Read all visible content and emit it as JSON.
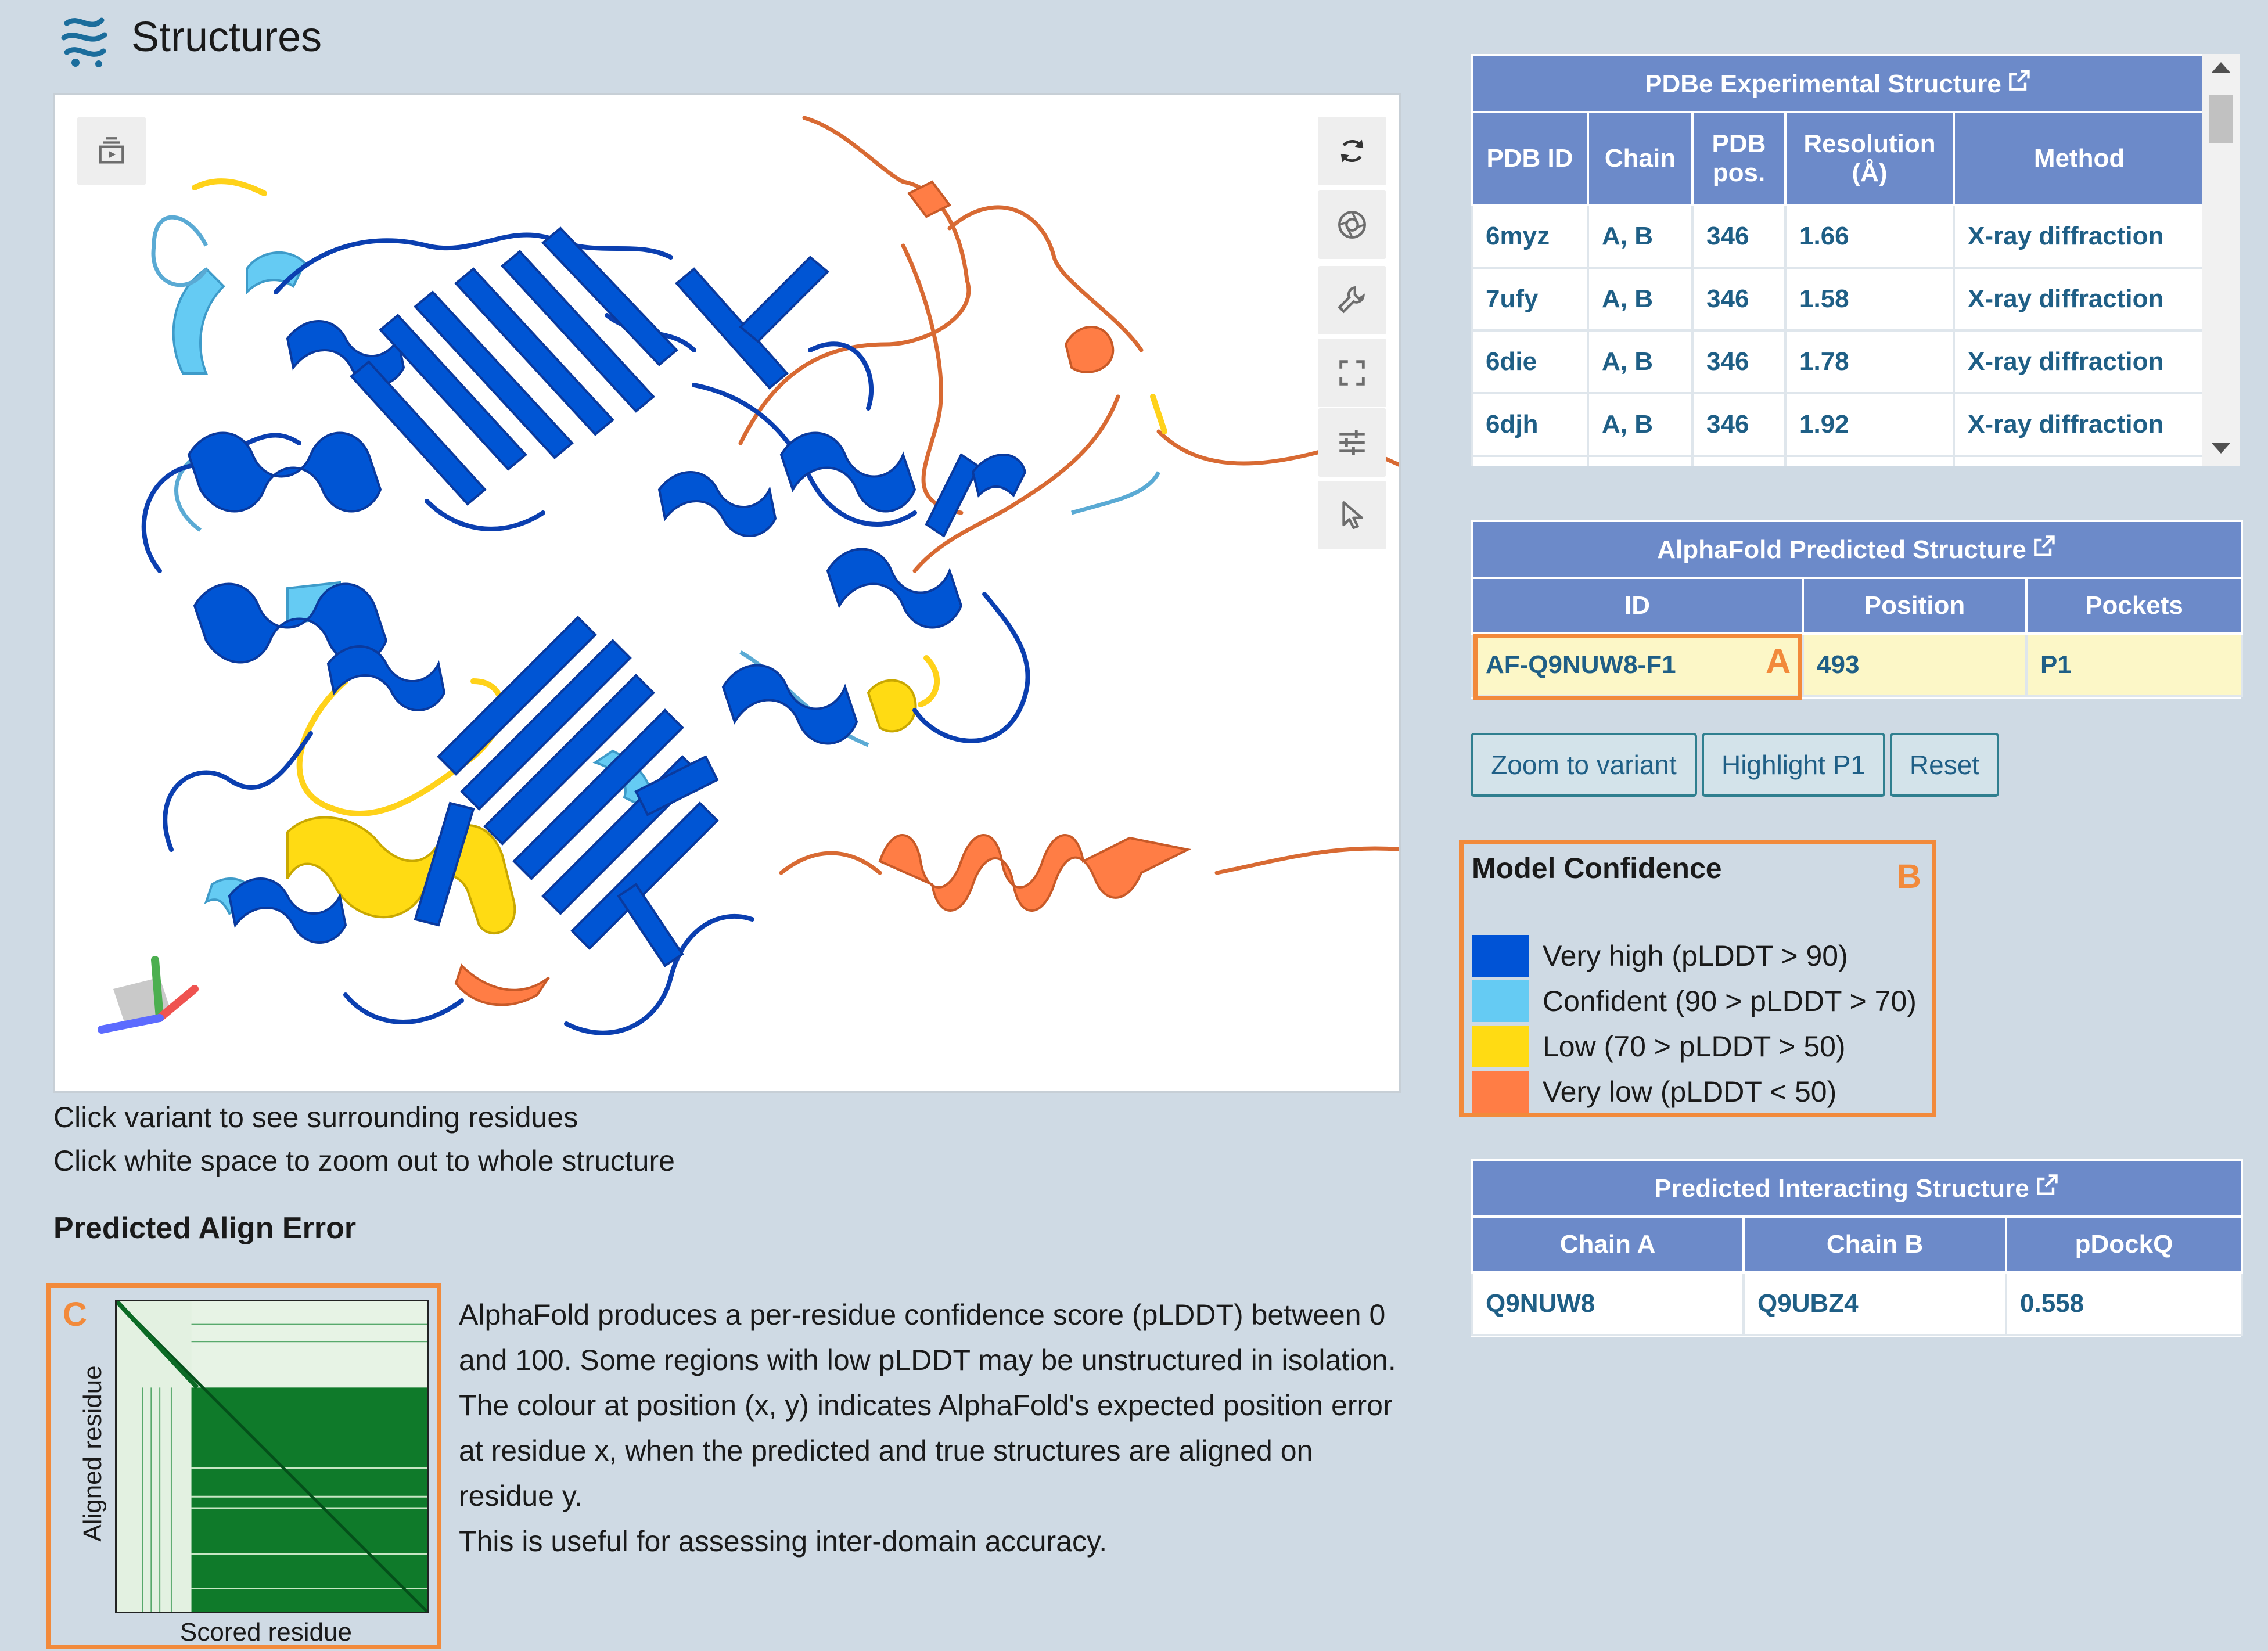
{
  "header": {
    "title": "Structures",
    "icon": "protein-structure-icon"
  },
  "viewer": {
    "toolbar_left": [
      {
        "icon": "animation-icon"
      }
    ],
    "toolbar_right": [
      {
        "icon": "reset-camera-icon"
      },
      {
        "icon": "screenshot-icon"
      },
      {
        "icon": "controls-wrench-icon"
      },
      {
        "icon": "fullscreen-icon"
      },
      {
        "icon": "settings-sliders-icon"
      },
      {
        "icon": "selection-mode-icon"
      }
    ],
    "colors": {
      "very_high": "#0053d6",
      "confident": "#65cbf3",
      "low": "#ffdb13",
      "very_low": "#ff7d45"
    }
  },
  "hints": {
    "line1": "Click variant to see surrounding residues",
    "line2": "Click white space to zoom out to whole structure"
  },
  "pae": {
    "section_title": "Predicted Align Error",
    "marker": "C",
    "y_label": "Aligned residue",
    "x_label": "Scored residue",
    "description": [
      "AlphaFold produces a per-residue confidence score (pLDDT) between 0 and 100. Some regions with low pLDDT may be unstructured in isolation.",
      "The colour at position (x, y) indicates AlphaFold's expected position error at residue x, when the predicted and true structures are aligned on residue y.",
      "This is useful for assessing inter-domain accuracy."
    ]
  },
  "pdbe": {
    "caption": "PDBe Experimental Structure",
    "columns": [
      "PDB ID",
      "Chain",
      "PDB pos.",
      "Resolution (Å)",
      "Method"
    ],
    "rows": [
      {
        "id": "6myz",
        "chain": "A, B",
        "pos": "346",
        "resolution": "1.66",
        "method": "X-ray diffraction"
      },
      {
        "id": "7ufy",
        "chain": "A, B",
        "pos": "346",
        "resolution": "1.58",
        "method": "X-ray diffraction"
      },
      {
        "id": "6die",
        "chain": "A, B",
        "pos": "346",
        "resolution": "1.78",
        "method": "X-ray diffraction"
      },
      {
        "id": "6djh",
        "chain": "A, B",
        "pos": "346",
        "resolution": "1.92",
        "method": "X-ray diffraction"
      }
    ]
  },
  "alphafold": {
    "caption": "AlphaFold Predicted Structure",
    "columns": [
      "ID",
      "Position",
      "Pockets"
    ],
    "row": {
      "id": "AF-Q9NUW8-F1",
      "position": "493",
      "pockets": "P1"
    },
    "marker": "A"
  },
  "buttons": {
    "zoom": "Zoom to variant",
    "highlight": "Highlight P1",
    "reset": "Reset"
  },
  "confidence": {
    "title": "Model Confidence",
    "marker": "B",
    "items": [
      {
        "label": "Very high (pLDDT > 90)",
        "color": "#0053d6"
      },
      {
        "label": "Confident (90 > pLDDT > 70)",
        "color": "#65cbf3"
      },
      {
        "label": "Low (70 > pLDDT > 50)",
        "color": "#ffdb13"
      },
      {
        "label": "Very low (pLDDT < 50)",
        "color": "#ff7d45"
      }
    ]
  },
  "interacting": {
    "caption": "Predicted Interacting Structure",
    "columns": [
      "Chain A",
      "Chain B",
      "pDockQ"
    ],
    "row": {
      "chain_a": "Q9NUW8",
      "chain_b": "Q9UBZ4",
      "pdockq": "0.558"
    }
  }
}
